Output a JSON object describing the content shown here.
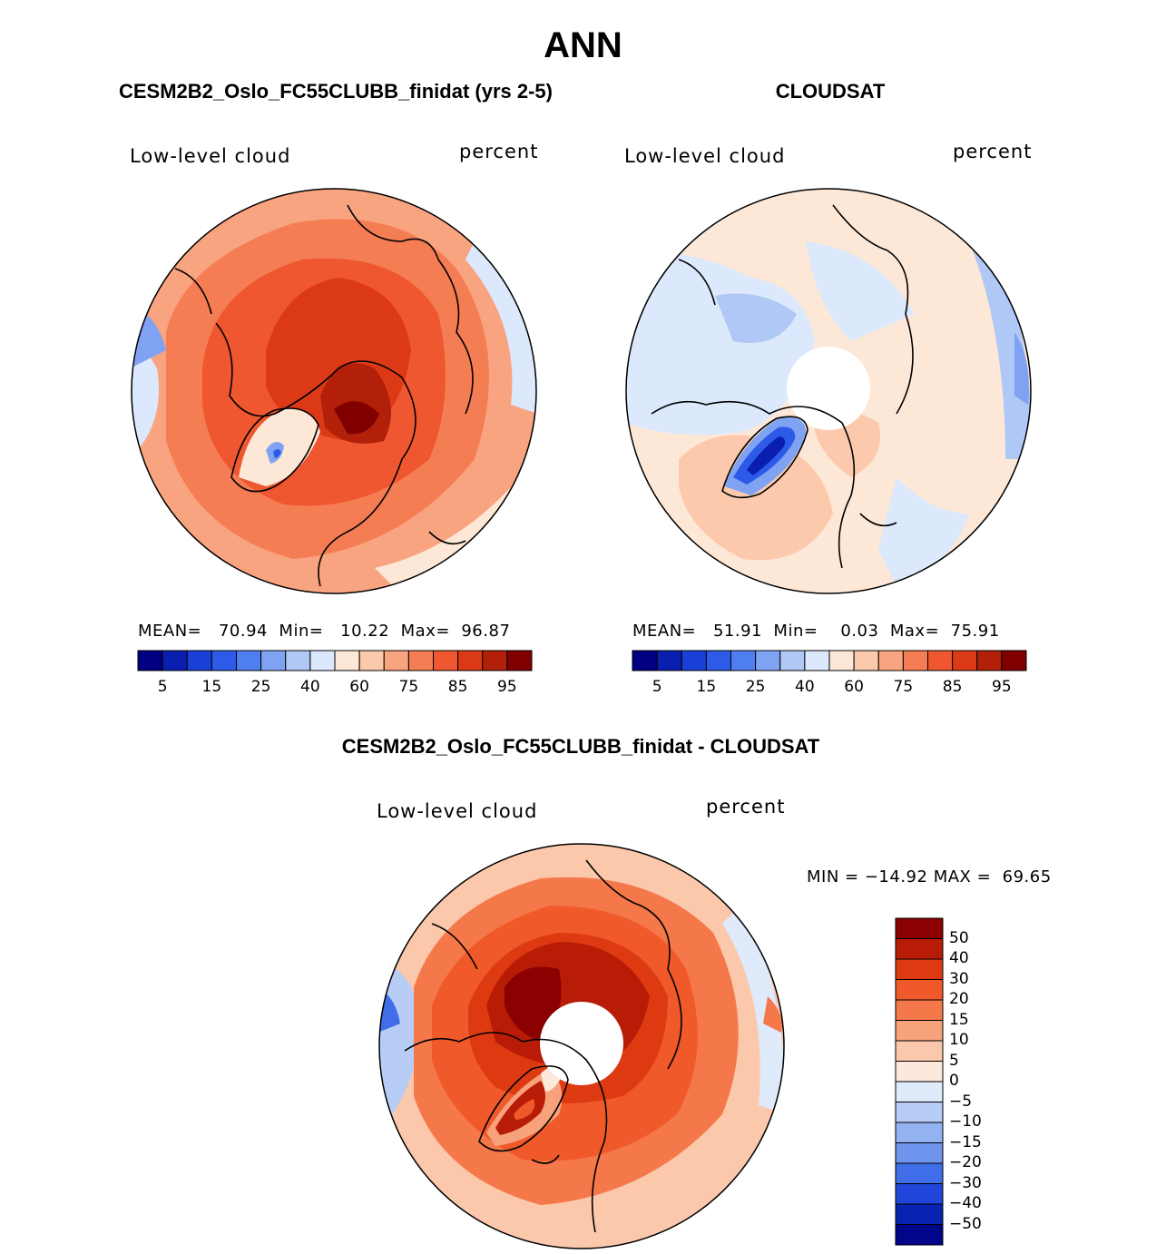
{
  "title": "ANN",
  "panels": [
    {
      "id": "model",
      "title": "CESM2B2_Oslo_FC55CLUBB_finidat (yrs 2-5)",
      "variable": "Low-level cloud",
      "units": "percent",
      "mean_label": "MEAN=",
      "mean": "70.94",
      "min_label": "Min=",
      "min": "10.22",
      "max_label": "Max=",
      "max": "96.87"
    },
    {
      "id": "obs",
      "title": "CLOUDSAT",
      "variable": "Low-level cloud",
      "units": "percent",
      "mean_label": "MEAN=",
      "mean": "51.91",
      "min_label": "Min=",
      "min": "0.03",
      "max_label": "Max=",
      "max": "75.91"
    }
  ],
  "diff_panel": {
    "title": "CESM2B2_Oslo_FC55CLUBB_finidat - CLOUDSAT",
    "variable": "Low-level cloud",
    "units": "percent",
    "min_label": "MIN =",
    "min": "−14.92",
    "max_label": "MAX =",
    "max": "69.65"
  },
  "colorbar_abs": {
    "levels": [
      "5",
      "10",
      "15",
      "20",
      "25",
      "30",
      "40",
      "50",
      "60",
      "65",
      "70",
      "75",
      "80",
      "85",
      "90",
      "95"
    ],
    "labels": [
      "5",
      "15",
      "25",
      "40",
      "60",
      "75",
      "85",
      "95"
    ],
    "colors": [
      "#000080",
      "#0a1fb0",
      "#1a3fd6",
      "#2e5ae8",
      "#4f7ef0",
      "#7fa3f2",
      "#b0c8f6",
      "#dce8fb",
      "#fde8d8",
      "#fcc9ad",
      "#f9a480",
      "#f57d54",
      "#ef5730",
      "#dc3a16",
      "#b3200a",
      "#800000"
    ]
  },
  "colorbar_diff": {
    "labels": [
      "50",
      "40",
      "30",
      "20",
      "15",
      "10",
      "5",
      "0",
      "−5",
      "−10",
      "−15",
      "−20",
      "−30",
      "−40",
      "−50"
    ],
    "colors": [
      "#8b0000",
      "#b81c06",
      "#dd3a12",
      "#f05a2a",
      "#f5784a",
      "#f8a27c",
      "#fbc8ab",
      "#fde9dc",
      "#dfeafb",
      "#b7cdf6",
      "#93b2f2",
      "#6f94ee",
      "#3f6ee8",
      "#1f46d8",
      "#0a22b2",
      "#00058a"
    ]
  },
  "chart_data": [
    {
      "type": "heatmap",
      "title": "CESM2B2_Oslo_FC55CLUBB_finidat (yrs 2-5)",
      "projection": "polar stereographic (Northern Hemisphere)",
      "variable": "Low-level cloud",
      "units": "percent",
      "mean": 70.94,
      "min": 10.22,
      "max": 96.87,
      "contour_levels": [
        5,
        10,
        15,
        20,
        25,
        30,
        40,
        50,
        60,
        65,
        70,
        75,
        80,
        85,
        90,
        95
      ]
    },
    {
      "type": "heatmap",
      "title": "CLOUDSAT",
      "projection": "polar stereographic (Northern Hemisphere)",
      "variable": "Low-level cloud",
      "units": "percent",
      "mean": 51.91,
      "min": 0.03,
      "max": 75.91,
      "contour_levels": [
        5,
        10,
        15,
        20,
        25,
        30,
        40,
        50,
        60,
        65,
        70,
        75,
        80,
        85,
        90,
        95
      ]
    },
    {
      "type": "heatmap",
      "title": "CESM2B2_Oslo_FC55CLUBB_finidat - CLOUDSAT",
      "projection": "polar stereographic (Northern Hemisphere)",
      "variable": "Low-level cloud",
      "units": "percent",
      "min": -14.92,
      "max": 69.65,
      "contour_levels": [
        -50,
        -40,
        -30,
        -20,
        -15,
        -10,
        -5,
        0,
        5,
        10,
        15,
        20,
        30,
        40,
        50
      ]
    }
  ]
}
